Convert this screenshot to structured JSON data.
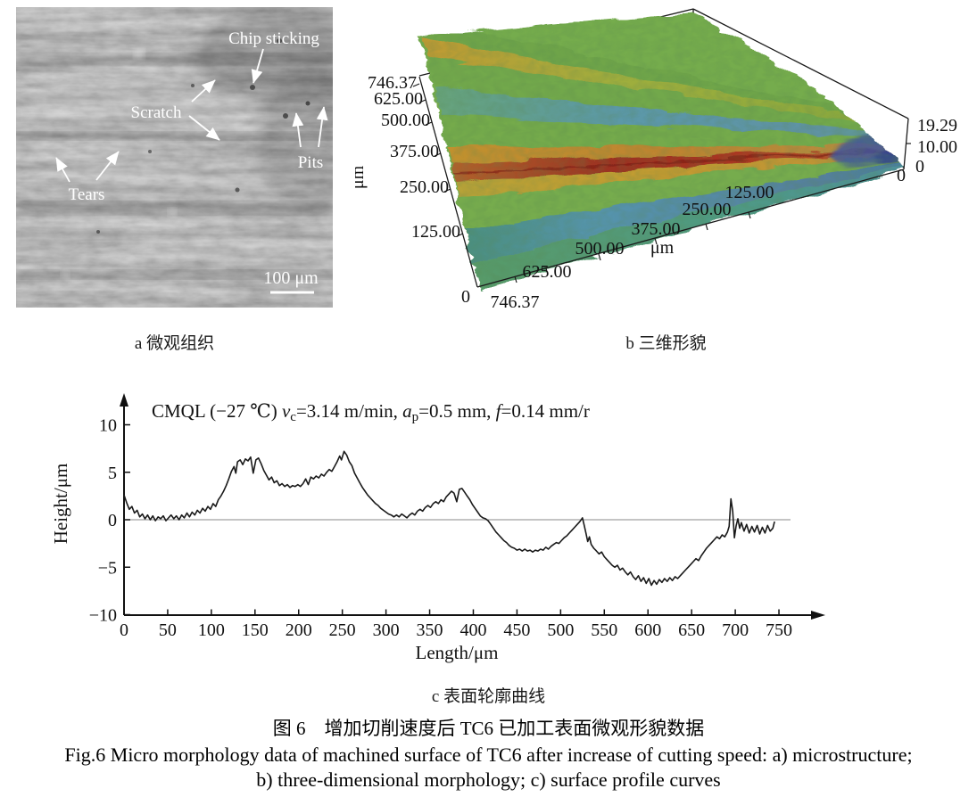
{
  "panel_a": {
    "caption": "a 微观组织",
    "annotations": {
      "chip_sticking": "Chip sticking",
      "scratch": "Scratch",
      "pits": "Pits",
      "tears": "Tears"
    },
    "scale_bar": "100 μm"
  },
  "panel_b": {
    "caption": "b 三维形貌",
    "y_unit": "μm",
    "x_unit": "μm",
    "y_ticks": [
      "746.37",
      "625.00",
      "500.00",
      "375.00",
      "250.00",
      "125.00"
    ],
    "y_origin": "0",
    "x_ticks": [
      "746.37",
      "625.00",
      "500.00",
      "375.00",
      "250.00",
      "125.00"
    ],
    "x_end": "0",
    "z_ticks": [
      "19.29",
      "10.00",
      "0"
    ]
  },
  "panel_c": {
    "caption": "c 表面轮廓曲线",
    "xlabel": "Length/μm",
    "ylabel": "Height/μm",
    "annotation": {
      "s1": "CMQL (−27 ℃) ",
      "v": "v",
      "vsub": "c",
      "s2": "=3.14 m/min, ",
      "a": "a",
      "asub": "p",
      "s3": "=0.5 mm, ",
      "f": "f",
      "s4": "=0.14 mm/r"
    }
  },
  "figure": {
    "title_cn": "图 6　增加切削速度后 TC6 已加工表面微观形貌数据",
    "caption_en_line1": "Fig.6 Micro morphology data of machined surface of TC6 after increase of cutting speed: a) microstructure;",
    "caption_en_line2": "b) three-dimensional morphology; c) surface profile curves"
  },
  "chart_data": [
    {
      "type": "heatmap",
      "subtype": "3d-surface-morphology",
      "title": "b 三维形貌",
      "xlabel": "μm",
      "ylabel": "μm",
      "x_range": [
        0,
        746.37
      ],
      "y_range": [
        0,
        746.37
      ],
      "z_range": [
        0,
        19.29
      ],
      "x_tick_values": [
        746.37,
        625.0,
        500.0,
        375.0,
        250.0,
        125.0,
        0
      ],
      "y_tick_values": [
        746.37,
        625.0,
        500.0,
        375.0,
        250.0,
        125.0,
        0
      ],
      "z_tick_values": [
        19.29,
        10.0,
        0
      ],
      "description": "machined surface with diagonal feed-mark ridges: green base, blue valleys, yellow-red ridge crests"
    },
    {
      "type": "line",
      "title": "c 表面轮廓曲线",
      "xlabel": "Length/μm",
      "ylabel": "Height/μm",
      "xlim": [
        0,
        750
      ],
      "ylim": [
        -10,
        12
      ],
      "x_ticks": [
        0,
        50,
        100,
        150,
        200,
        250,
        300,
        350,
        400,
        450,
        500,
        550,
        600,
        650,
        700,
        750
      ],
      "y_ticks": [
        10,
        5,
        0,
        -5,
        -10
      ],
      "grid": false,
      "zero_line": true,
      "annotation": "CMQL (−27 ℃) vc=3.14 m/min, ap=0.5 mm, f=0.14 mm/r",
      "points": [
        [
          0,
          2.6
        ],
        [
          3,
          1.8
        ],
        [
          6,
          1.1
        ],
        [
          9,
          1.4
        ],
        [
          12,
          0.7
        ],
        [
          15,
          1.0
        ],
        [
          18,
          0.3
        ],
        [
          21,
          0.6
        ],
        [
          24,
          0.1
        ],
        [
          27,
          0.5
        ],
        [
          30,
          0.0
        ],
        [
          33,
          0.4
        ],
        [
          36,
          -0.1
        ],
        [
          39,
          0.3
        ],
        [
          42,
          0.1
        ],
        [
          45,
          0.4
        ],
        [
          48,
          -0.1
        ],
        [
          51,
          0.2
        ],
        [
          54,
          0.5
        ],
        [
          57,
          0.1
        ],
        [
          60,
          0.4
        ],
        [
          63,
          0.0
        ],
        [
          66,
          0.5
        ],
        [
          69,
          0.2
        ],
        [
          72,
          0.7
        ],
        [
          75,
          0.3
        ],
        [
          78,
          0.8
        ],
        [
          81,
          0.5
        ],
        [
          84,
          1.0
        ],
        [
          87,
          0.7
        ],
        [
          90,
          1.2
        ],
        [
          93,
          0.9
        ],
        [
          96,
          1.4
        ],
        [
          99,
          1.1
        ],
        [
          102,
          1.7
        ],
        [
          105,
          1.4
        ],
        [
          108,
          2.1
        ],
        [
          111,
          2.5
        ],
        [
          114,
          3.0
        ],
        [
          117,
          3.6
        ],
        [
          120,
          4.3
        ],
        [
          123,
          5.1
        ],
        [
          126,
          5.6
        ],
        [
          128,
          4.9
        ],
        [
          130,
          6.1
        ],
        [
          133,
          6.3
        ],
        [
          136,
          5.8
        ],
        [
          139,
          6.4
        ],
        [
          142,
          6.2
        ],
        [
          145,
          6.6
        ],
        [
          148,
          4.9
        ],
        [
          151,
          6.3
        ],
        [
          154,
          6.5
        ],
        [
          157,
          5.9
        ],
        [
          160,
          5.2
        ],
        [
          163,
          4.7
        ],
        [
          166,
          4.2
        ],
        [
          169,
          4.5
        ],
        [
          172,
          3.9
        ],
        [
          175,
          4.1
        ],
        [
          178,
          3.6
        ],
        [
          181,
          3.8
        ],
        [
          184,
          3.5
        ],
        [
          187,
          3.7
        ],
        [
          190,
          3.4
        ],
        [
          193,
          3.6
        ],
        [
          196,
          3.5
        ],
        [
          199,
          3.7
        ],
        [
          202,
          3.5
        ],
        [
          205,
          3.8
        ],
        [
          208,
          4.3
        ],
        [
          211,
          3.7
        ],
        [
          214,
          4.5
        ],
        [
          217,
          4.3
        ],
        [
          220,
          4.6
        ],
        [
          223,
          4.4
        ],
        [
          226,
          4.8
        ],
        [
          229,
          4.6
        ],
        [
          232,
          5.0
        ],
        [
          235,
          5.3
        ],
        [
          238,
          5.1
        ],
        [
          241,
          5.6
        ],
        [
          244,
          6.1
        ],
        [
          247,
          6.7
        ],
        [
          249,
          6.3
        ],
        [
          252,
          7.2
        ],
        [
          255,
          6.8
        ],
        [
          258,
          6.1
        ],
        [
          261,
          5.7
        ],
        [
          264,
          4.9
        ],
        [
          267,
          4.4
        ],
        [
          270,
          3.9
        ],
        [
          273,
          3.4
        ],
        [
          276,
          3.0
        ],
        [
          279,
          2.6
        ],
        [
          282,
          2.3
        ],
        [
          285,
          2.0
        ],
        [
          288,
          1.7
        ],
        [
          291,
          1.5
        ],
        [
          294,
          1.2
        ],
        [
          297,
          1.0
        ],
        [
          300,
          0.8
        ],
        [
          303,
          0.6
        ],
        [
          306,
          0.5
        ],
        [
          309,
          0.3
        ],
        [
          312,
          0.5
        ],
        [
          315,
          0.3
        ],
        [
          318,
          0.6
        ],
        [
          321,
          0.4
        ],
        [
          324,
          0.2
        ],
        [
          327,
          0.5
        ],
        [
          330,
          0.7
        ],
        [
          333,
          0.5
        ],
        [
          336,
          0.9
        ],
        [
          339,
          1.1
        ],
        [
          342,
          0.9
        ],
        [
          345,
          1.3
        ],
        [
          348,
          1.5
        ],
        [
          351,
          1.3
        ],
        [
          354,
          1.7
        ],
        [
          357,
          1.9
        ],
        [
          360,
          1.7
        ],
        [
          363,
          2.1
        ],
        [
          366,
          1.9
        ],
        [
          369,
          2.4
        ],
        [
          372,
          2.7
        ],
        [
          375,
          3.0
        ],
        [
          378,
          2.8
        ],
        [
          381,
          1.9
        ],
        [
          384,
          3.2
        ],
        [
          387,
          3.3
        ],
        [
          390,
          2.9
        ],
        [
          393,
          2.5
        ],
        [
          396,
          2.1
        ],
        [
          399,
          1.6
        ],
        [
          402,
          1.2
        ],
        [
          405,
          0.8
        ],
        [
          408,
          0.4
        ],
        [
          411,
          0.2
        ],
        [
          414,
          0.1
        ],
        [
          417,
          -0.1
        ],
        [
          420,
          -0.5
        ],
        [
          423,
          -0.9
        ],
        [
          426,
          -1.3
        ],
        [
          429,
          -1.6
        ],
        [
          432,
          -1.9
        ],
        [
          435,
          -2.2
        ],
        [
          438,
          -2.4
        ],
        [
          441,
          -2.7
        ],
        [
          444,
          -2.9
        ],
        [
          447,
          -3.0
        ],
        [
          450,
          -3.2
        ],
        [
          453,
          -3.1
        ],
        [
          456,
          -3.3
        ],
        [
          459,
          -3.1
        ],
        [
          462,
          -3.3
        ],
        [
          465,
          -3.2
        ],
        [
          468,
          -3.4
        ],
        [
          471,
          -3.2
        ],
        [
          474,
          -3.3
        ],
        [
          477,
          -3.1
        ],
        [
          480,
          -3.2
        ],
        [
          483,
          -2.9
        ],
        [
          486,
          -3.1
        ],
        [
          489,
          -2.8
        ],
        [
          492,
          -2.6
        ],
        [
          495,
          -2.4
        ],
        [
          498,
          -2.5
        ],
        [
          501,
          -2.2
        ],
        [
          504,
          -1.9
        ],
        [
          507,
          -1.7
        ],
        [
          510,
          -1.4
        ],
        [
          513,
          -1.1
        ],
        [
          516,
          -0.8
        ],
        [
          519,
          -0.5
        ],
        [
          522,
          -0.2
        ],
        [
          525,
          0.2
        ],
        [
          527,
          -0.6
        ],
        [
          529,
          -1.4
        ],
        [
          531,
          -2.3
        ],
        [
          533,
          -1.8
        ],
        [
          535,
          -2.6
        ],
        [
          538,
          -3.0
        ],
        [
          541,
          -3.3
        ],
        [
          544,
          -3.6
        ],
        [
          547,
          -3.4
        ],
        [
          550,
          -3.9
        ],
        [
          553,
          -4.2
        ],
        [
          556,
          -4.5
        ],
        [
          559,
          -4.8
        ],
        [
          562,
          -5.0
        ],
        [
          565,
          -4.8
        ],
        [
          568,
          -5.3
        ],
        [
          571,
          -5.1
        ],
        [
          574,
          -5.5
        ],
        [
          577,
          -5.8
        ],
        [
          580,
          -5.5
        ],
        [
          583,
          -6.0
        ],
        [
          586,
          -6.3
        ],
        [
          589,
          -5.9
        ],
        [
          592,
          -6.5
        ],
        [
          595,
          -6.1
        ],
        [
          598,
          -6.7
        ],
        [
          601,
          -6.2
        ],
        [
          604,
          -6.9
        ],
        [
          607,
          -6.4
        ],
        [
          610,
          -6.8
        ],
        [
          613,
          -6.3
        ],
        [
          616,
          -6.6
        ],
        [
          619,
          -6.2
        ],
        [
          622,
          -6.5
        ],
        [
          625,
          -6.1
        ],
        [
          628,
          -6.4
        ],
        [
          631,
          -6.0
        ],
        [
          634,
          -6.2
        ],
        [
          637,
          -5.9
        ],
        [
          640,
          -5.6
        ],
        [
          643,
          -5.3
        ],
        [
          646,
          -5.0
        ],
        [
          649,
          -4.7
        ],
        [
          652,
          -4.4
        ],
        [
          655,
          -4.1
        ],
        [
          658,
          -4.3
        ],
        [
          661,
          -3.8
        ],
        [
          664,
          -3.4
        ],
        [
          667,
          -3.0
        ],
        [
          670,
          -2.7
        ],
        [
          673,
          -2.4
        ],
        [
          676,
          -2.1
        ],
        [
          679,
          -1.8
        ],
        [
          682,
          -2.0
        ],
        [
          685,
          -1.6
        ],
        [
          688,
          -1.8
        ],
        [
          691,
          -1.3
        ],
        [
          693,
          -0.7
        ],
        [
          695,
          2.2
        ],
        [
          697,
          0.9
        ],
        [
          699,
          -1.9
        ],
        [
          701,
          -0.6
        ],
        [
          703,
          0.1
        ],
        [
          705,
          -0.9
        ],
        [
          707,
          -0.3
        ],
        [
          710,
          -1.2
        ],
        [
          713,
          -0.5
        ],
        [
          716,
          -1.4
        ],
        [
          719,
          -0.7
        ],
        [
          722,
          -1.3
        ],
        [
          725,
          -0.6
        ],
        [
          728,
          -1.5
        ],
        [
          731,
          -0.8
        ],
        [
          734,
          -1.4
        ],
        [
          737,
          -0.6
        ],
        [
          740,
          -1.2
        ],
        [
          743,
          -0.9
        ],
        [
          745,
          -0.2
        ]
      ]
    }
  ]
}
